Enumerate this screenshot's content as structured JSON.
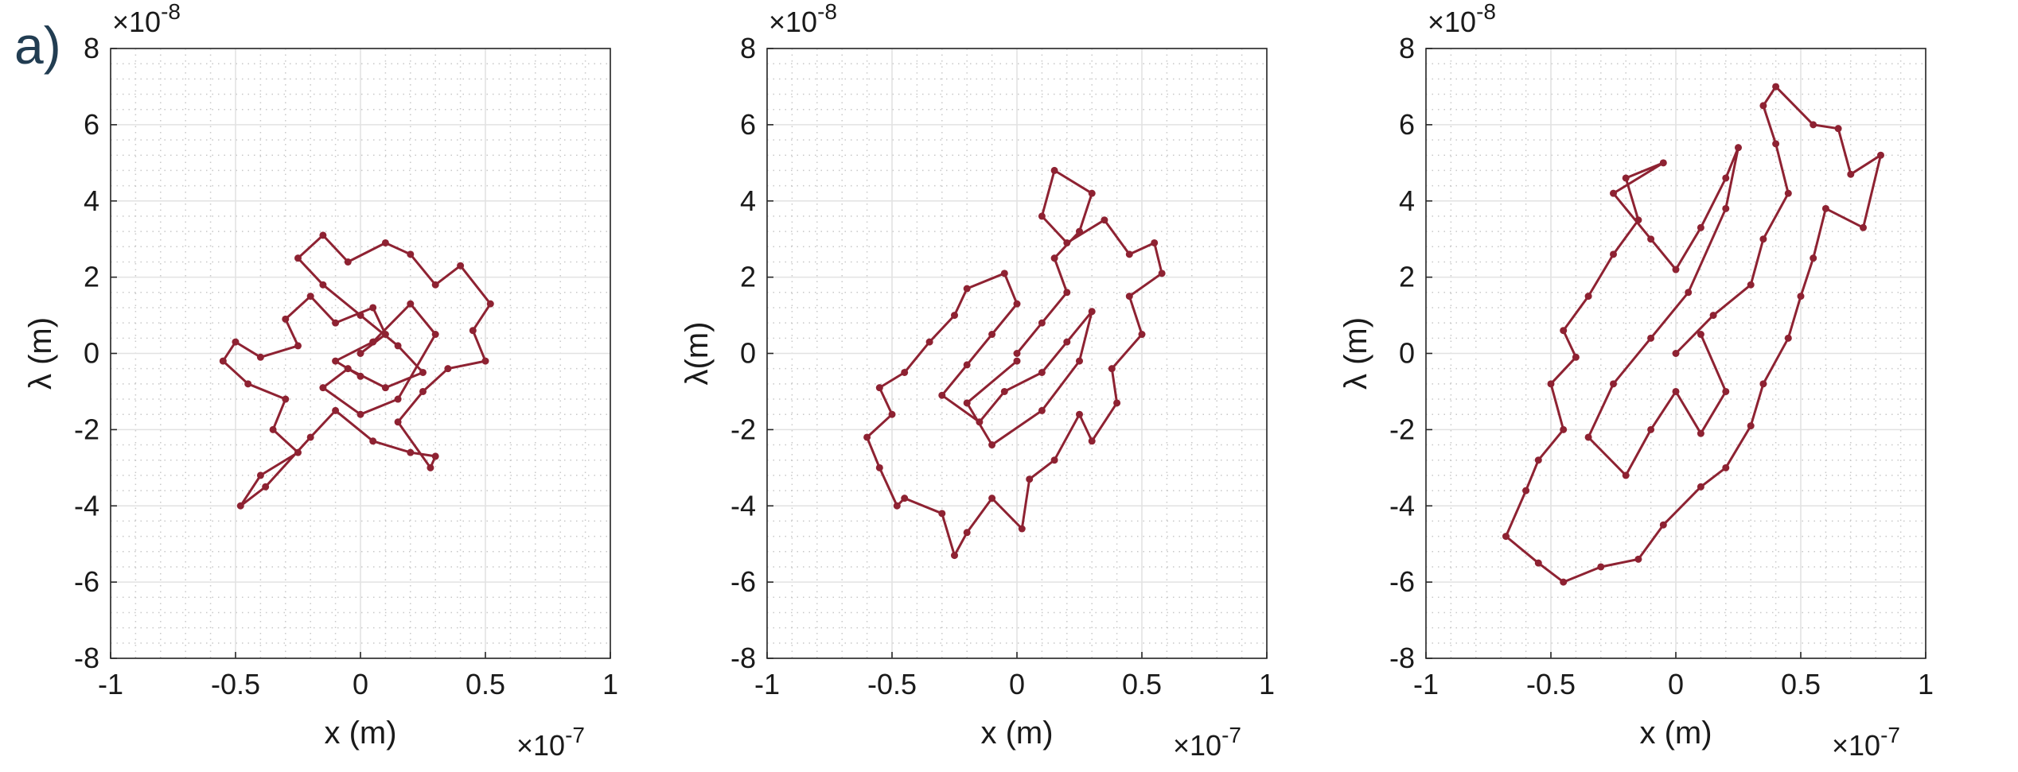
{
  "panel_label": "a)",
  "chart_data": [
    {
      "type": "line",
      "xlabel": "x (m)",
      "ylabel": "λ (m)",
      "x_multiplier": {
        "base": "×10",
        "exponent": "-7"
      },
      "y_multiplier": {
        "base": "×10",
        "exponent": "-8"
      },
      "xlim": [
        -1,
        1
      ],
      "ylim": [
        -8,
        8
      ],
      "xticks": [
        -1,
        -0.5,
        0,
        0.5,
        1
      ],
      "yticks": [
        -8,
        -6,
        -4,
        -2,
        0,
        2,
        4,
        6,
        8
      ],
      "grid": true,
      "minor_grid": true,
      "x": [
        0,
        0.1,
        0.05,
        -0.1,
        -0.2,
        -0.3,
        -0.25,
        -0.4,
        -0.5,
        -0.55,
        -0.45,
        -0.3,
        -0.35,
        -0.25,
        -0.4,
        -0.48,
        -0.38,
        -0.2,
        -0.1,
        0.05,
        0.2,
        0.3,
        0.28,
        0.15,
        0.25,
        0.35,
        0.5,
        0.45,
        0.52,
        0.4,
        0.3,
        0.2,
        0.1,
        -0.05,
        -0.15,
        -0.25,
        -0.15,
        0,
        0.15,
        0.25,
        0.1,
        -0.05,
        -0.15,
        0,
        0.15,
        0.3,
        0.2,
        0.05,
        -0.1,
        0
      ],
      "series": [
        {
          "color": "#8e2232",
          "values": [
            0,
            0.5,
            1.2,
            0.8,
            1.5,
            0.9,
            0.2,
            -0.1,
            0.3,
            -0.2,
            -0.8,
            -1.2,
            -2.0,
            -2.6,
            -3.2,
            -4.0,
            -3.5,
            -2.2,
            -1.5,
            -2.3,
            -2.6,
            -2.7,
            -3.0,
            -1.8,
            -1.0,
            -0.4,
            -0.2,
            0.6,
            1.3,
            2.3,
            1.8,
            2.6,
            2.9,
            2.4,
            3.1,
            2.5,
            1.8,
            1.0,
            0.2,
            -0.5,
            -0.9,
            -0.4,
            -0.9,
            -1.6,
            -1.2,
            0.5,
            1.3,
            0.3,
            -0.2,
            -0.6
          ]
        }
      ]
    },
    {
      "type": "line",
      "xlabel": "x (m)",
      "ylabel": "λ(m)",
      "x_multiplier": {
        "base": "×10",
        "exponent": "-7"
      },
      "y_multiplier": {
        "base": "×10",
        "exponent": "-8"
      },
      "xlim": [
        -1,
        1
      ],
      "ylim": [
        -8,
        8
      ],
      "xticks": [
        -1,
        -0.5,
        0,
        0.5,
        1
      ],
      "yticks": [
        -8,
        -6,
        -4,
        -2,
        0,
        2,
        4,
        6,
        8
      ],
      "grid": true,
      "minor_grid": true,
      "x": [
        0,
        0.1,
        0.2,
        0.15,
        0.25,
        0.3,
        0.15,
        0.1,
        0.2,
        0.35,
        0.45,
        0.55,
        0.58,
        0.45,
        0.5,
        0.38,
        0.4,
        0.3,
        0.25,
        0.15,
        0.05,
        0.02,
        -0.1,
        -0.2,
        -0.25,
        -0.3,
        -0.45,
        -0.48,
        -0.55,
        -0.6,
        -0.5,
        -0.55,
        -0.45,
        -0.35,
        -0.25,
        -0.2,
        -0.05,
        0,
        -0.1,
        -0.2,
        -0.3,
        -0.15,
        -0.05,
        0.1,
        0.2,
        0.3,
        0.25,
        0.1,
        -0.1,
        -0.2,
        0
      ],
      "series": [
        {
          "color": "#8e2232",
          "values": [
            0,
            0.8,
            1.6,
            2.5,
            3.2,
            4.2,
            4.8,
            3.6,
            2.9,
            3.5,
            2.6,
            2.9,
            2.1,
            1.5,
            0.5,
            -0.4,
            -1.3,
            -2.3,
            -1.6,
            -2.8,
            -3.3,
            -4.6,
            -3.8,
            -4.7,
            -5.3,
            -4.2,
            -3.8,
            -4.0,
            -3.0,
            -2.2,
            -1.6,
            -0.9,
            -0.5,
            0.3,
            1.0,
            1.7,
            2.1,
            1.3,
            0.5,
            -0.3,
            -1.1,
            -1.8,
            -1.0,
            -0.5,
            0.3,
            1.1,
            -0.2,
            -1.5,
            -2.4,
            -1.3,
            -0.2
          ]
        }
      ]
    },
    {
      "type": "line",
      "xlabel": "x (m)",
      "ylabel": "λ (m)",
      "x_multiplier": {
        "base": "×10",
        "exponent": "-7"
      },
      "y_multiplier": {
        "base": "×10",
        "exponent": "-8"
      },
      "xlim": [
        -1,
        1
      ],
      "ylim": [
        -8,
        8
      ],
      "xticks": [
        -1,
        -0.5,
        0,
        0.5,
        1
      ],
      "yticks": [
        -8,
        -6,
        -4,
        -2,
        0,
        2,
        4,
        6,
        8
      ],
      "grid": true,
      "minor_grid": true,
      "x": [
        0,
        0.15,
        0.3,
        0.35,
        0.45,
        0.4,
        0.35,
        0.4,
        0.55,
        0.65,
        0.7,
        0.82,
        0.75,
        0.6,
        0.55,
        0.5,
        0.45,
        0.35,
        0.3,
        0.2,
        0.1,
        -0.05,
        -0.15,
        -0.3,
        -0.45,
        -0.55,
        -0.68,
        -0.6,
        -0.55,
        -0.45,
        -0.5,
        -0.4,
        -0.45,
        -0.35,
        -0.25,
        -0.15,
        -0.2,
        -0.05,
        -0.25,
        -0.1,
        0,
        0.1,
        0.2,
        0.25,
        0.2,
        0.05,
        -0.1,
        -0.25,
        -0.35,
        -0.2,
        -0.1,
        0,
        0.1,
        0.2,
        0.1
      ],
      "series": [
        {
          "color": "#8e2232",
          "values": [
            0,
            1.0,
            1.8,
            3.0,
            4.2,
            5.5,
            6.5,
            7.0,
            6.0,
            5.9,
            4.7,
            5.2,
            3.3,
            3.8,
            2.5,
            1.5,
            0.4,
            -0.8,
            -1.9,
            -3.0,
            -3.5,
            -4.5,
            -5.4,
            -5.6,
            -6.0,
            -5.5,
            -4.8,
            -3.6,
            -2.8,
            -2.0,
            -0.8,
            -0.1,
            0.6,
            1.5,
            2.6,
            3.5,
            4.6,
            5.0,
            4.2,
            3.0,
            2.2,
            3.3,
            4.6,
            5.4,
            3.8,
            1.6,
            0.4,
            -0.8,
            -2.2,
            -3.2,
            -2.0,
            -1.0,
            -2.1,
            -1.0,
            0.5
          ]
        }
      ]
    }
  ]
}
